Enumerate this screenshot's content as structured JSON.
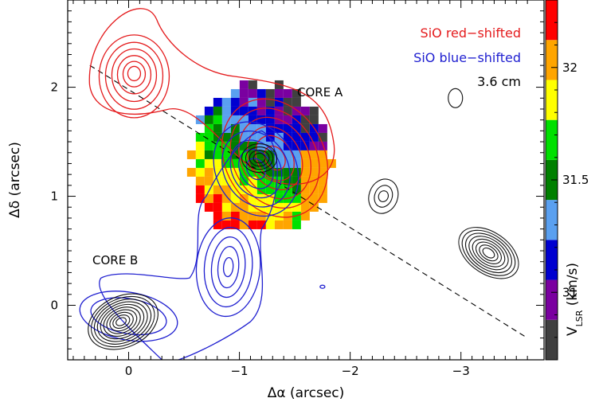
{
  "chart_data": {
    "type": "contour",
    "xlabel": "Δα (arcsec)",
    "ylabel": "Δδ (arcsec)",
    "xlim": [
      0.55,
      -3.75
    ],
    "ylim": [
      -0.5,
      2.8
    ],
    "x_tick_labels": [
      {
        "value": 0,
        "label": "0"
      },
      {
        "value": -1,
        "label": "−1"
      },
      {
        "value": -2,
        "label": "−2"
      },
      {
        "value": -3,
        "label": "−3"
      }
    ],
    "y_tick_labels": [
      {
        "value": 0,
        "label": "0"
      },
      {
        "value": 1,
        "label": "1"
      },
      {
        "value": 2,
        "label": "2"
      }
    ],
    "legend": [
      {
        "label": "SiO red−shifted",
        "color": "#e41a1c"
      },
      {
        "label": "SiO blue−shifted",
        "color": "#1f1fd0"
      },
      {
        "label": "3.6 cm",
        "color": "#000000"
      }
    ],
    "annotations": [
      "CORE A",
      "CORE B"
    ],
    "colorbar": {
      "label": "V_LSR (km/s)",
      "label_main": "V",
      "label_sub": "LSR",
      "label_tail": " (km/s)",
      "range": [
        30.7,
        32.3
      ],
      "tick_labels": [
        {
          "value": 31,
          "label": "31"
        },
        {
          "value": 31.5,
          "label": "31.5"
        },
        {
          "value": 32,
          "label": "32"
        }
      ],
      "colors": [
        "#404040",
        "#7a00a0",
        "#0000d0",
        "#5aa0f0",
        "#008000",
        "#00e000",
        "#ffff00",
        "#ffa500",
        "#ff0000"
      ]
    },
    "outflow_axis": {
      "from": [
        0.35,
        2.2
      ],
      "to": [
        -3.6,
        -0.3
      ],
      "style": "dashed"
    },
    "sources": {
      "core_a": [
        -1.2,
        1.3
      ],
      "core_b": [
        0.05,
        -0.15
      ],
      "sio_red_peak": [
        -0.05,
        2.1
      ],
      "sio_blue_peak": [
        -0.9,
        0.3
      ],
      "cm_knots": [
        [
          -2.3,
          1.0
        ],
        [
          -3.25,
          0.48
        ],
        [
          -2.95,
          1.9
        ]
      ]
    }
  }
}
